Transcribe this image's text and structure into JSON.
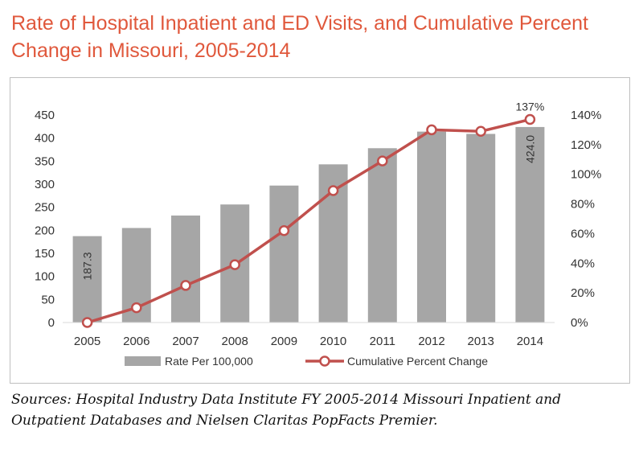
{
  "title": "Rate of Hospital Inpatient and ED Visits, and Cumulative Percent Change in Missouri, 2005-2014",
  "source": "Sources: Hospital Industry Data Institute FY 2005-2014 Missouri Inpatient and Outpatient Databases and Nielsen Claritas PopFacts Premier.",
  "colors": {
    "title": "#e0583c",
    "bar": "#a6a6a6",
    "line": "#c0504d",
    "marker_fill": "#ffffff"
  },
  "chart_data": {
    "type": "bar",
    "categories": [
      "2005",
      "2006",
      "2007",
      "2008",
      "2009",
      "2010",
      "2011",
      "2012",
      "2013",
      "2014"
    ],
    "series": [
      {
        "name": "Rate Per 100,000",
        "type": "bar",
        "axis": "left",
        "values": [
          187.3,
          205,
          232,
          256,
          297,
          343,
          378,
          414,
          409,
          424.0
        ]
      },
      {
        "name": "Cumulative Percent Change",
        "type": "line",
        "axis": "right",
        "values": [
          0,
          10,
          25,
          39,
          62,
          89,
          109,
          130,
          129,
          137
        ]
      }
    ],
    "y_left": {
      "ylim": [
        0,
        450
      ],
      "ticks": [
        "0",
        "50",
        "100",
        "150",
        "200",
        "250",
        "300",
        "350",
        "400",
        "450"
      ]
    },
    "y_right": {
      "ylim": [
        0,
        140
      ],
      "ticks": [
        "0%",
        "20%",
        "40%",
        "60%",
        "80%",
        "100%",
        "120%",
        "140%"
      ]
    },
    "data_labels": [
      {
        "series": 0,
        "index": 0,
        "text": "187.3"
      },
      {
        "series": 0,
        "index": 9,
        "text": "424.0"
      },
      {
        "series": 1,
        "index": 9,
        "text": "137%"
      }
    ],
    "grid": false,
    "legend": "bottom"
  }
}
